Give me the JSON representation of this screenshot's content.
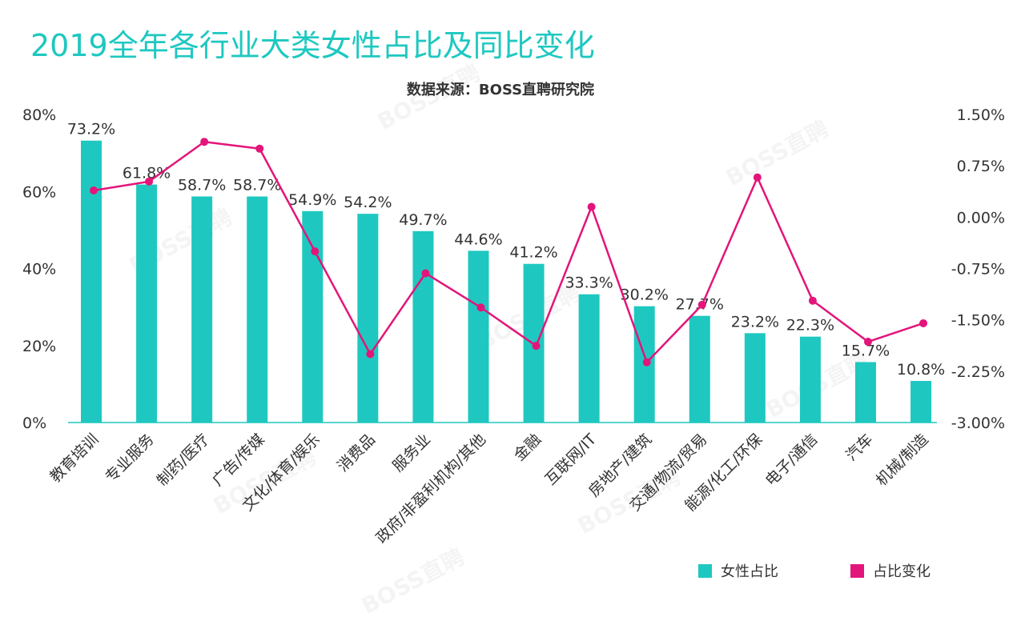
{
  "chart_data": {
    "type": "bar",
    "title": "2019全年各行业大类女性占比及同比变化",
    "subtitle": "数据来源：BOSS直聘研究院",
    "watermark": "BOSS直聘",
    "categories": [
      "教育培训",
      "专业服务",
      "制药/医疗",
      "广告/传媒",
      "文化/体育/娱乐",
      "消费品",
      "服务业",
      "政府/非盈利机构/其他",
      "金融",
      "互联网/IT",
      "房地产/建筑",
      "交通/物流/贸易",
      "能源/化工/环保",
      "电子/通信",
      "汽车",
      "机械/制造"
    ],
    "series": [
      {
        "name": "女性占比",
        "type": "bar",
        "axis": "left",
        "color": "#1ec8c0",
        "values": [
          73.2,
          61.8,
          58.7,
          58.7,
          54.9,
          54.2,
          49.7,
          44.6,
          41.2,
          33.3,
          30.2,
          27.7,
          23.2,
          22.3,
          15.7,
          10.8
        ],
        "labels": [
          "73.2%",
          "61.8%",
          "58.7%",
          "58.7%",
          "54.9%",
          "54.2%",
          "49.7%",
          "44.6%",
          "41.2%",
          "33.3%",
          "30.2%",
          "27.7%",
          "23.2%",
          "22.3%",
          "15.7%",
          "10.8%"
        ]
      },
      {
        "name": "占比变化",
        "type": "line",
        "axis": "right",
        "color": "#e3157a",
        "values": [
          0.39,
          0.52,
          1.1,
          1.0,
          -0.5,
          -2.0,
          -0.82,
          -1.32,
          -1.88,
          0.15,
          -2.12,
          -1.28,
          0.58,
          -1.22,
          -1.82,
          -1.55
        ]
      }
    ],
    "y_left": {
      "min": 0,
      "max": 80,
      "ticks": [
        "0%",
        "20%",
        "40%",
        "60%",
        "80%"
      ],
      "tick_values": [
        0,
        20,
        40,
        60,
        80
      ]
    },
    "y_right": {
      "min": -3.0,
      "max": 1.5,
      "ticks": [
        "-3.00%",
        "-2.25%",
        "-1.50%",
        "-0.75%",
        "0.00%",
        "0.75%",
        "1.50%"
      ],
      "tick_values": [
        -3.0,
        -2.25,
        -1.5,
        -0.75,
        0.0,
        0.75,
        1.5
      ]
    },
    "legend": {
      "position": "bottom-right",
      "items": [
        "女性占比",
        "占比变化"
      ]
    }
  }
}
